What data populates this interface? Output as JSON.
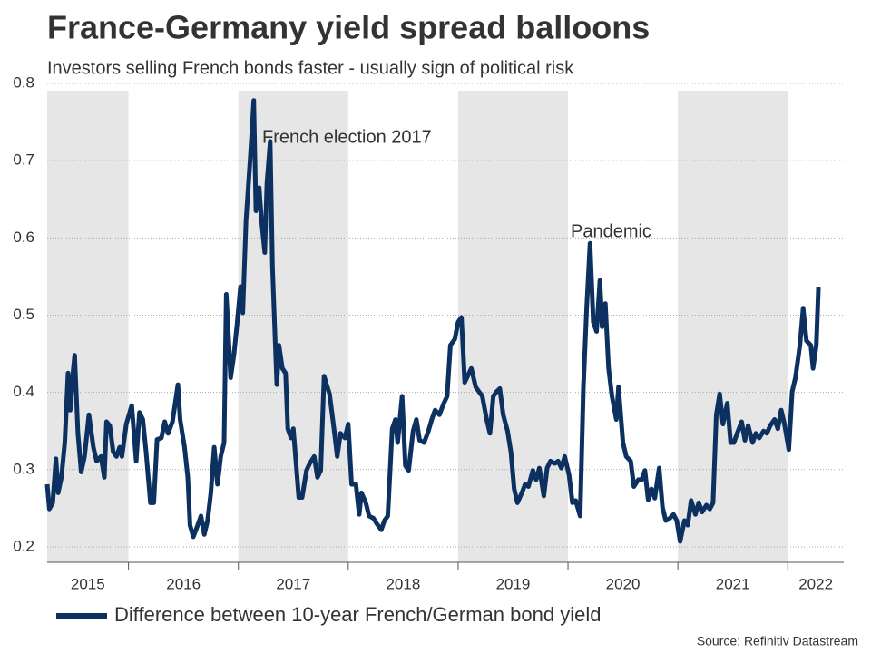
{
  "chart_data": {
    "type": "line",
    "title": "France-Germany yield spread balloons",
    "subtitle": "Investors selling French bonds faster - usually sign of political risk",
    "source": "Source: Refinitiv Datastream",
    "annotations": [
      "French election 2017",
      "Pandemic"
    ],
    "x": [
      2015.26,
      2015.28,
      2015.31,
      2015.34,
      2015.36,
      2015.39,
      2015.42,
      2015.45,
      2015.47,
      2015.49,
      2015.51,
      2015.54,
      2015.57,
      2015.6,
      2015.64,
      2015.68,
      2015.71,
      2015.75,
      2015.78,
      2015.8,
      2015.83,
      2015.86,
      2015.89,
      2015.92,
      2015.94,
      2015.98,
      2016.03,
      2016.07,
      2016.1,
      2016.13,
      2016.16,
      2016.2,
      2016.23,
      2016.26,
      2016.3,
      2016.33,
      2016.36,
      2016.4,
      2016.45,
      2016.47,
      2016.51,
      2016.54,
      2016.56,
      2016.59,
      2016.63,
      2016.66,
      2016.69,
      2016.72,
      2016.75,
      2016.78,
      2016.81,
      2016.84,
      2016.87,
      2016.89,
      2016.93,
      2016.96,
      2016.99,
      2017.02,
      2017.04,
      2017.07,
      2017.11,
      2017.14,
      2017.16,
      2017.19,
      2017.21,
      2017.24,
      2017.26,
      2017.29,
      2017.31,
      2017.35,
      2017.37,
      2017.4,
      2017.43,
      2017.45,
      2017.48,
      2017.5,
      2017.55,
      2017.58,
      2017.62,
      2017.65,
      2017.69,
      2017.72,
      2017.75,
      2017.78,
      2017.81,
      2017.83,
      2017.87,
      2017.9,
      2017.93,
      2017.97,
      2018.0,
      2018.03,
      2018.07,
      2018.1,
      2018.12,
      2018.16,
      2018.19,
      2018.23,
      2018.26,
      2018.3,
      2018.33,
      2018.36,
      2018.4,
      2018.43,
      2018.45,
      2018.49,
      2018.52,
      2018.55,
      2018.59,
      2018.62,
      2018.65,
      2018.69,
      2018.73,
      2018.76,
      2018.79,
      2018.83,
      2018.87,
      2018.9,
      2018.93,
      2018.97,
      2019.0,
      2019.03,
      2019.06,
      2019.08,
      2019.12,
      2019.16,
      2019.19,
      2019.22,
      2019.26,
      2019.29,
      2019.32,
      2019.35,
      2019.38,
      2019.41,
      2019.45,
      2019.48,
      2019.51,
      2019.54,
      2019.58,
      2019.61,
      2019.64,
      2019.68,
      2019.71,
      2019.74,
      2019.78,
      2019.81,
      2019.84,
      2019.88,
      2019.91,
      2019.94,
      2019.97,
      2020.01,
      2020.04,
      2020.07,
      2020.11,
      2020.14,
      2020.17,
      2020.2,
      2020.23,
      2020.26,
      2020.29,
      2020.31,
      2020.34,
      2020.37,
      2020.4,
      2020.44,
      2020.46,
      2020.5,
      2020.53,
      2020.57,
      2020.6,
      2020.64,
      2020.67,
      2020.7,
      2020.73,
      2020.76,
      2020.79,
      2020.83,
      2020.86,
      2020.89,
      2020.92,
      2020.96,
      2020.99,
      2021.02,
      2021.06,
      2021.09,
      2021.12,
      2021.16,
      2021.19,
      2021.22,
      2021.26,
      2021.29,
      2021.32,
      2021.35,
      2021.38,
      2021.41,
      2021.45,
      2021.48,
      2021.51,
      2021.54,
      2021.58,
      2021.61,
      2021.64,
      2021.68,
      2021.71,
      2021.74,
      2021.78,
      2021.81,
      2021.84,
      2021.88,
      2021.91,
      2021.94,
      2021.97,
      2022.01,
      2022.04,
      2022.07,
      2022.11,
      2022.14,
      2022.17,
      2022.21,
      2022.23,
      2022.26,
      2022.28
    ],
    "series": [
      {
        "name": "Difference between 10-year French/German bond yield",
        "color": "#0c3160",
        "values": [
          0.281,
          0.249,
          0.257,
          0.314,
          0.27,
          0.29,
          0.335,
          0.425,
          0.377,
          0.419,
          0.448,
          0.347,
          0.297,
          0.317,
          0.371,
          0.329,
          0.311,
          0.317,
          0.29,
          0.362,
          0.357,
          0.323,
          0.317,
          0.329,
          0.317,
          0.359,
          0.383,
          0.311,
          0.374,
          0.365,
          0.323,
          0.257,
          0.257,
          0.339,
          0.341,
          0.362,
          0.347,
          0.362,
          0.41,
          0.365,
          0.329,
          0.29,
          0.228,
          0.213,
          0.228,
          0.24,
          0.216,
          0.234,
          0.27,
          0.329,
          0.281,
          0.317,
          0.335,
          0.527,
          0.419,
          0.449,
          0.491,
          0.537,
          0.503,
          0.623,
          0.707,
          0.778,
          0.635,
          0.665,
          0.623,
          0.581,
          0.671,
          0.725,
          0.563,
          0.41,
          0.461,
          0.431,
          0.425,
          0.353,
          0.341,
          0.353,
          0.264,
          0.264,
          0.299,
          0.308,
          0.317,
          0.29,
          0.299,
          0.421,
          0.407,
          0.398,
          0.353,
          0.317,
          0.347,
          0.341,
          0.359,
          0.281,
          0.281,
          0.242,
          0.27,
          0.257,
          0.24,
          0.237,
          0.23,
          0.222,
          0.234,
          0.24,
          0.353,
          0.365,
          0.335,
          0.395,
          0.305,
          0.299,
          0.35,
          0.365,
          0.338,
          0.335,
          0.35,
          0.365,
          0.377,
          0.371,
          0.386,
          0.395,
          0.461,
          0.469,
          0.491,
          0.497,
          0.413,
          0.419,
          0.431,
          0.407,
          0.401,
          0.395,
          0.365,
          0.347,
          0.395,
          0.401,
          0.405,
          0.371,
          0.35,
          0.323,
          0.275,
          0.257,
          0.27,
          0.281,
          0.278,
          0.299,
          0.287,
          0.302,
          0.266,
          0.302,
          0.311,
          0.308,
          0.311,
          0.302,
          0.317,
          0.293,
          0.257,
          0.26,
          0.24,
          0.407,
          0.509,
          0.593,
          0.491,
          0.479,
          0.545,
          0.485,
          0.515,
          0.431,
          0.395,
          0.365,
          0.407,
          0.335,
          0.317,
          0.311,
          0.278,
          0.287,
          0.287,
          0.299,
          0.261,
          0.275,
          0.263,
          0.302,
          0.251,
          0.234,
          0.236,
          0.242,
          0.234,
          0.207,
          0.234,
          0.228,
          0.26,
          0.242,
          0.257,
          0.245,
          0.254,
          0.249,
          0.257,
          0.371,
          0.398,
          0.359,
          0.386,
          0.335,
          0.335,
          0.347,
          0.362,
          0.338,
          0.357,
          0.335,
          0.347,
          0.341,
          0.35,
          0.347,
          0.357,
          0.365,
          0.353,
          0.377,
          0.359,
          0.326,
          0.401,
          0.419,
          0.461,
          0.509,
          0.467,
          0.461,
          0.431,
          0.461,
          0.537
        ]
      }
    ],
    "xlim": [
      2015.26,
      2022.51
    ],
    "xticks": [
      2015,
      2016,
      2017,
      2018,
      2019,
      2020,
      2021,
      2022
    ],
    "ylim": [
      0.18,
      0.8
    ],
    "yticks": [
      0.2,
      0.3,
      0.4,
      0.5,
      0.6,
      0.7,
      0.8
    ],
    "grid": true,
    "year_shading": true
  }
}
